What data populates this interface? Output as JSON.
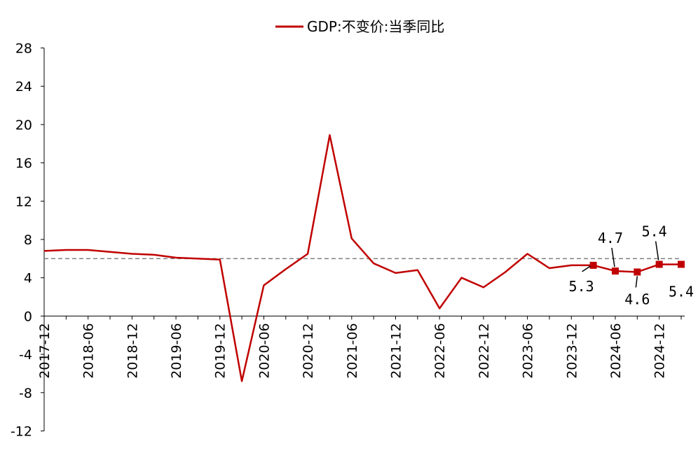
{
  "chart_data": {
    "type": "line",
    "legend": {
      "label": "GDP:不变价:当季同比",
      "placement": "top-center"
    },
    "x": [
      "2017-12",
      "2018-03",
      "2018-06",
      "2018-09",
      "2018-12",
      "2019-03",
      "2019-06",
      "2019-09",
      "2019-12",
      "2020-03",
      "2020-06",
      "2020-09",
      "2020-12",
      "2021-03",
      "2021-06",
      "2021-09",
      "2021-12",
      "2022-03",
      "2022-06",
      "2022-09",
      "2022-12",
      "2023-03",
      "2023-06",
      "2023-09",
      "2023-12",
      "2024-03",
      "2024-06",
      "2024-09",
      "2024-12",
      "2025-03"
    ],
    "x_tick_labels": [
      "2017-12",
      "2018-06",
      "2018-12",
      "2019-06",
      "2019-12",
      "2020-06",
      "2020-12",
      "2021-06",
      "2021-12",
      "2022-06",
      "2022-12",
      "2023-06",
      "2023-12",
      "2024-06",
      "2024-12"
    ],
    "series": [
      {
        "name": "GDP:不变价:当季同比",
        "color": "#c00000",
        "values": [
          6.8,
          6.9,
          6.9,
          6.7,
          6.5,
          6.4,
          6.1,
          6.0,
          5.9,
          -6.8,
          3.2,
          4.9,
          6.5,
          18.9,
          8.1,
          5.5,
          4.5,
          4.8,
          0.8,
          4.0,
          3.0,
          4.6,
          6.5,
          5.0,
          5.3,
          5.3,
          4.7,
          4.6,
          5.4,
          5.4
        ],
        "markers_from_index": 25
      }
    ],
    "reference_line": {
      "value": 6.0,
      "style": "dashed",
      "color": "#808080"
    },
    "data_labels": [
      {
        "text": "5.3",
        "index": 25,
        "position": "below-left"
      },
      {
        "text": "4.7",
        "index": 26,
        "position": "above"
      },
      {
        "text": "4.6",
        "index": 27,
        "position": "below"
      },
      {
        "text": "5.4",
        "index": 28,
        "position": "above"
      },
      {
        "text": "5.4",
        "index": 29,
        "position": "below"
      }
    ],
    "y_ticks": [
      28,
      24,
      20,
      16,
      12,
      8,
      4,
      0,
      -4,
      -8,
      -12
    ],
    "ylim": [
      -12,
      28
    ],
    "grid": false
  }
}
